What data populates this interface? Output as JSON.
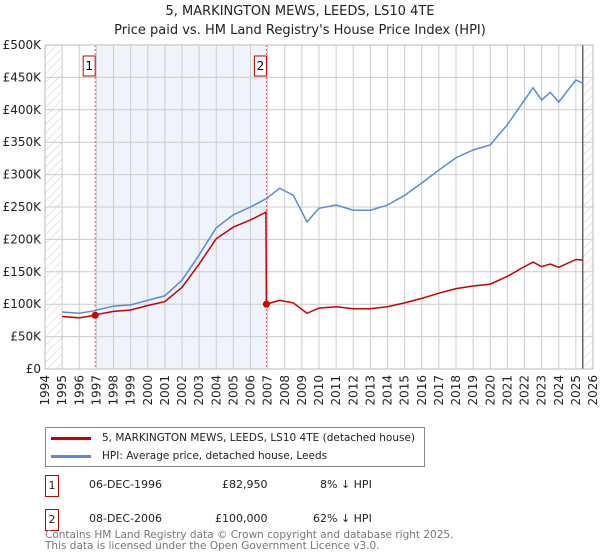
{
  "title_line1": "5, MARKINGTON MEWS, LEEDS, LS10 4TE",
  "title_line2": "Price paid vs. HM Land Registry's House Price Index (HPI)",
  "chart_data": {
    "type": "line",
    "title": "5, MARKINGTON MEWS, LEEDS, LS10 4TE — Price paid vs. HM Land Registry's House Price Index (HPI)",
    "xlim": [
      1994,
      2026
    ],
    "ylim": [
      0,
      500000
    ],
    "x_ticks": [
      "1994",
      "1995",
      "1996",
      "1997",
      "1998",
      "1999",
      "2000",
      "2001",
      "2002",
      "2003",
      "2004",
      "2005",
      "2006",
      "2007",
      "2008",
      "2009",
      "2010",
      "2011",
      "2012",
      "2013",
      "2014",
      "2015",
      "2016",
      "2017",
      "2018",
      "2019",
      "2020",
      "2021",
      "2022",
      "2023",
      "2024",
      "2025",
      "2026"
    ],
    "y_ticks": [
      {
        "v": 0,
        "label": "£0"
      },
      {
        "v": 50000,
        "label": "£50K"
      },
      {
        "v": 100000,
        "label": "£100K"
      },
      {
        "v": 150000,
        "label": "£150K"
      },
      {
        "v": 200000,
        "label": "£200K"
      },
      {
        "v": 250000,
        "label": "£250K"
      },
      {
        "v": 300000,
        "label": "£300K"
      },
      {
        "v": 350000,
        "label": "£350K"
      },
      {
        "v": 400000,
        "label": "£400K"
      },
      {
        "v": 450000,
        "label": "£450K"
      },
      {
        "v": 500000,
        "label": "£500K"
      }
    ],
    "grid": true,
    "data_range": [
      1995,
      2025.4
    ],
    "series": [
      {
        "name": "5, MARKINGTON MEWS, LEEDS, LS10 4TE (detached house)",
        "color": "#cc0000",
        "x": [
          1995,
          1996,
          1996.93,
          1997,
          1998,
          1999,
          2000,
          2001,
          2002,
          2003,
          2004,
          2005,
          2006,
          2006.9,
          2006.93,
          2007.7,
          2008.5,
          2009.3,
          2010,
          2011,
          2012,
          2013,
          2014,
          2015,
          2016,
          2017,
          2018,
          2019,
          2020,
          2021,
          2022,
          2022.5,
          2023,
          2023.5,
          2024,
          2025,
          2025.4
        ],
        "y": [
          81000,
          79000,
          82950,
          84000,
          89000,
          91000,
          98000,
          104000,
          126000,
          162000,
          201000,
          219000,
          230000,
          242000,
          100000,
          106000,
          102000,
          86000,
          94000,
          96000,
          93000,
          93000,
          96000,
          102000,
          109000,
          117000,
          124000,
          128000,
          131000,
          143000,
          158000,
          165000,
          158000,
          162000,
          157000,
          169000,
          168000
        ]
      },
      {
        "name": "HPI: Average price, detached house, Leeds",
        "color": "#5b8bd0",
        "x": [
          1995,
          1996,
          1996.93,
          1997,
          1998,
          1999,
          2000,
          2001,
          2002,
          2003,
          2004,
          2005,
          2006,
          2006.93,
          2007.7,
          2008.5,
          2009.3,
          2010,
          2011,
          2012,
          2013,
          2014,
          2015,
          2016,
          2017,
          2018,
          2019,
          2020,
          2021,
          2022,
          2022.5,
          2023,
          2023.5,
          2024,
          2025,
          2025.4
        ],
        "y": [
          88000,
          86000,
          90000,
          91000,
          97000,
          99000,
          106000,
          113000,
          137000,
          176000,
          218000,
          238000,
          250000,
          263000,
          279000,
          268000,
          227000,
          248000,
          253000,
          245000,
          245000,
          253000,
          268000,
          287000,
          307000,
          326000,
          338000,
          346000,
          377000,
          415000,
          434000,
          415000,
          427000,
          412000,
          446000,
          441000
        ]
      }
    ],
    "sales": [
      {
        "id": "1",
        "x": 1996.93,
        "y": 82950
      },
      {
        "id": "2",
        "x": 2006.93,
        "y": 100000
      }
    ],
    "legend_placement": "below"
  },
  "legend": {
    "red": "5, MARKINGTON MEWS, LEEDS, LS10 4TE (detached house)",
    "blue": "HPI: Average price, detached house, Leeds"
  },
  "transactions": [
    {
      "id": "1",
      "date": "06-DEC-1996",
      "price": "£82,950",
      "delta": "8% ↓ HPI"
    },
    {
      "id": "2",
      "date": "08-DEC-2006",
      "price": "£100,000",
      "delta": "62% ↓ HPI"
    }
  ],
  "footer": {
    "line1": "Contains HM Land Registry data © Crown copyright and database right 2025.",
    "line2": "This data is licensed under the Open Government Licence v3.0."
  }
}
